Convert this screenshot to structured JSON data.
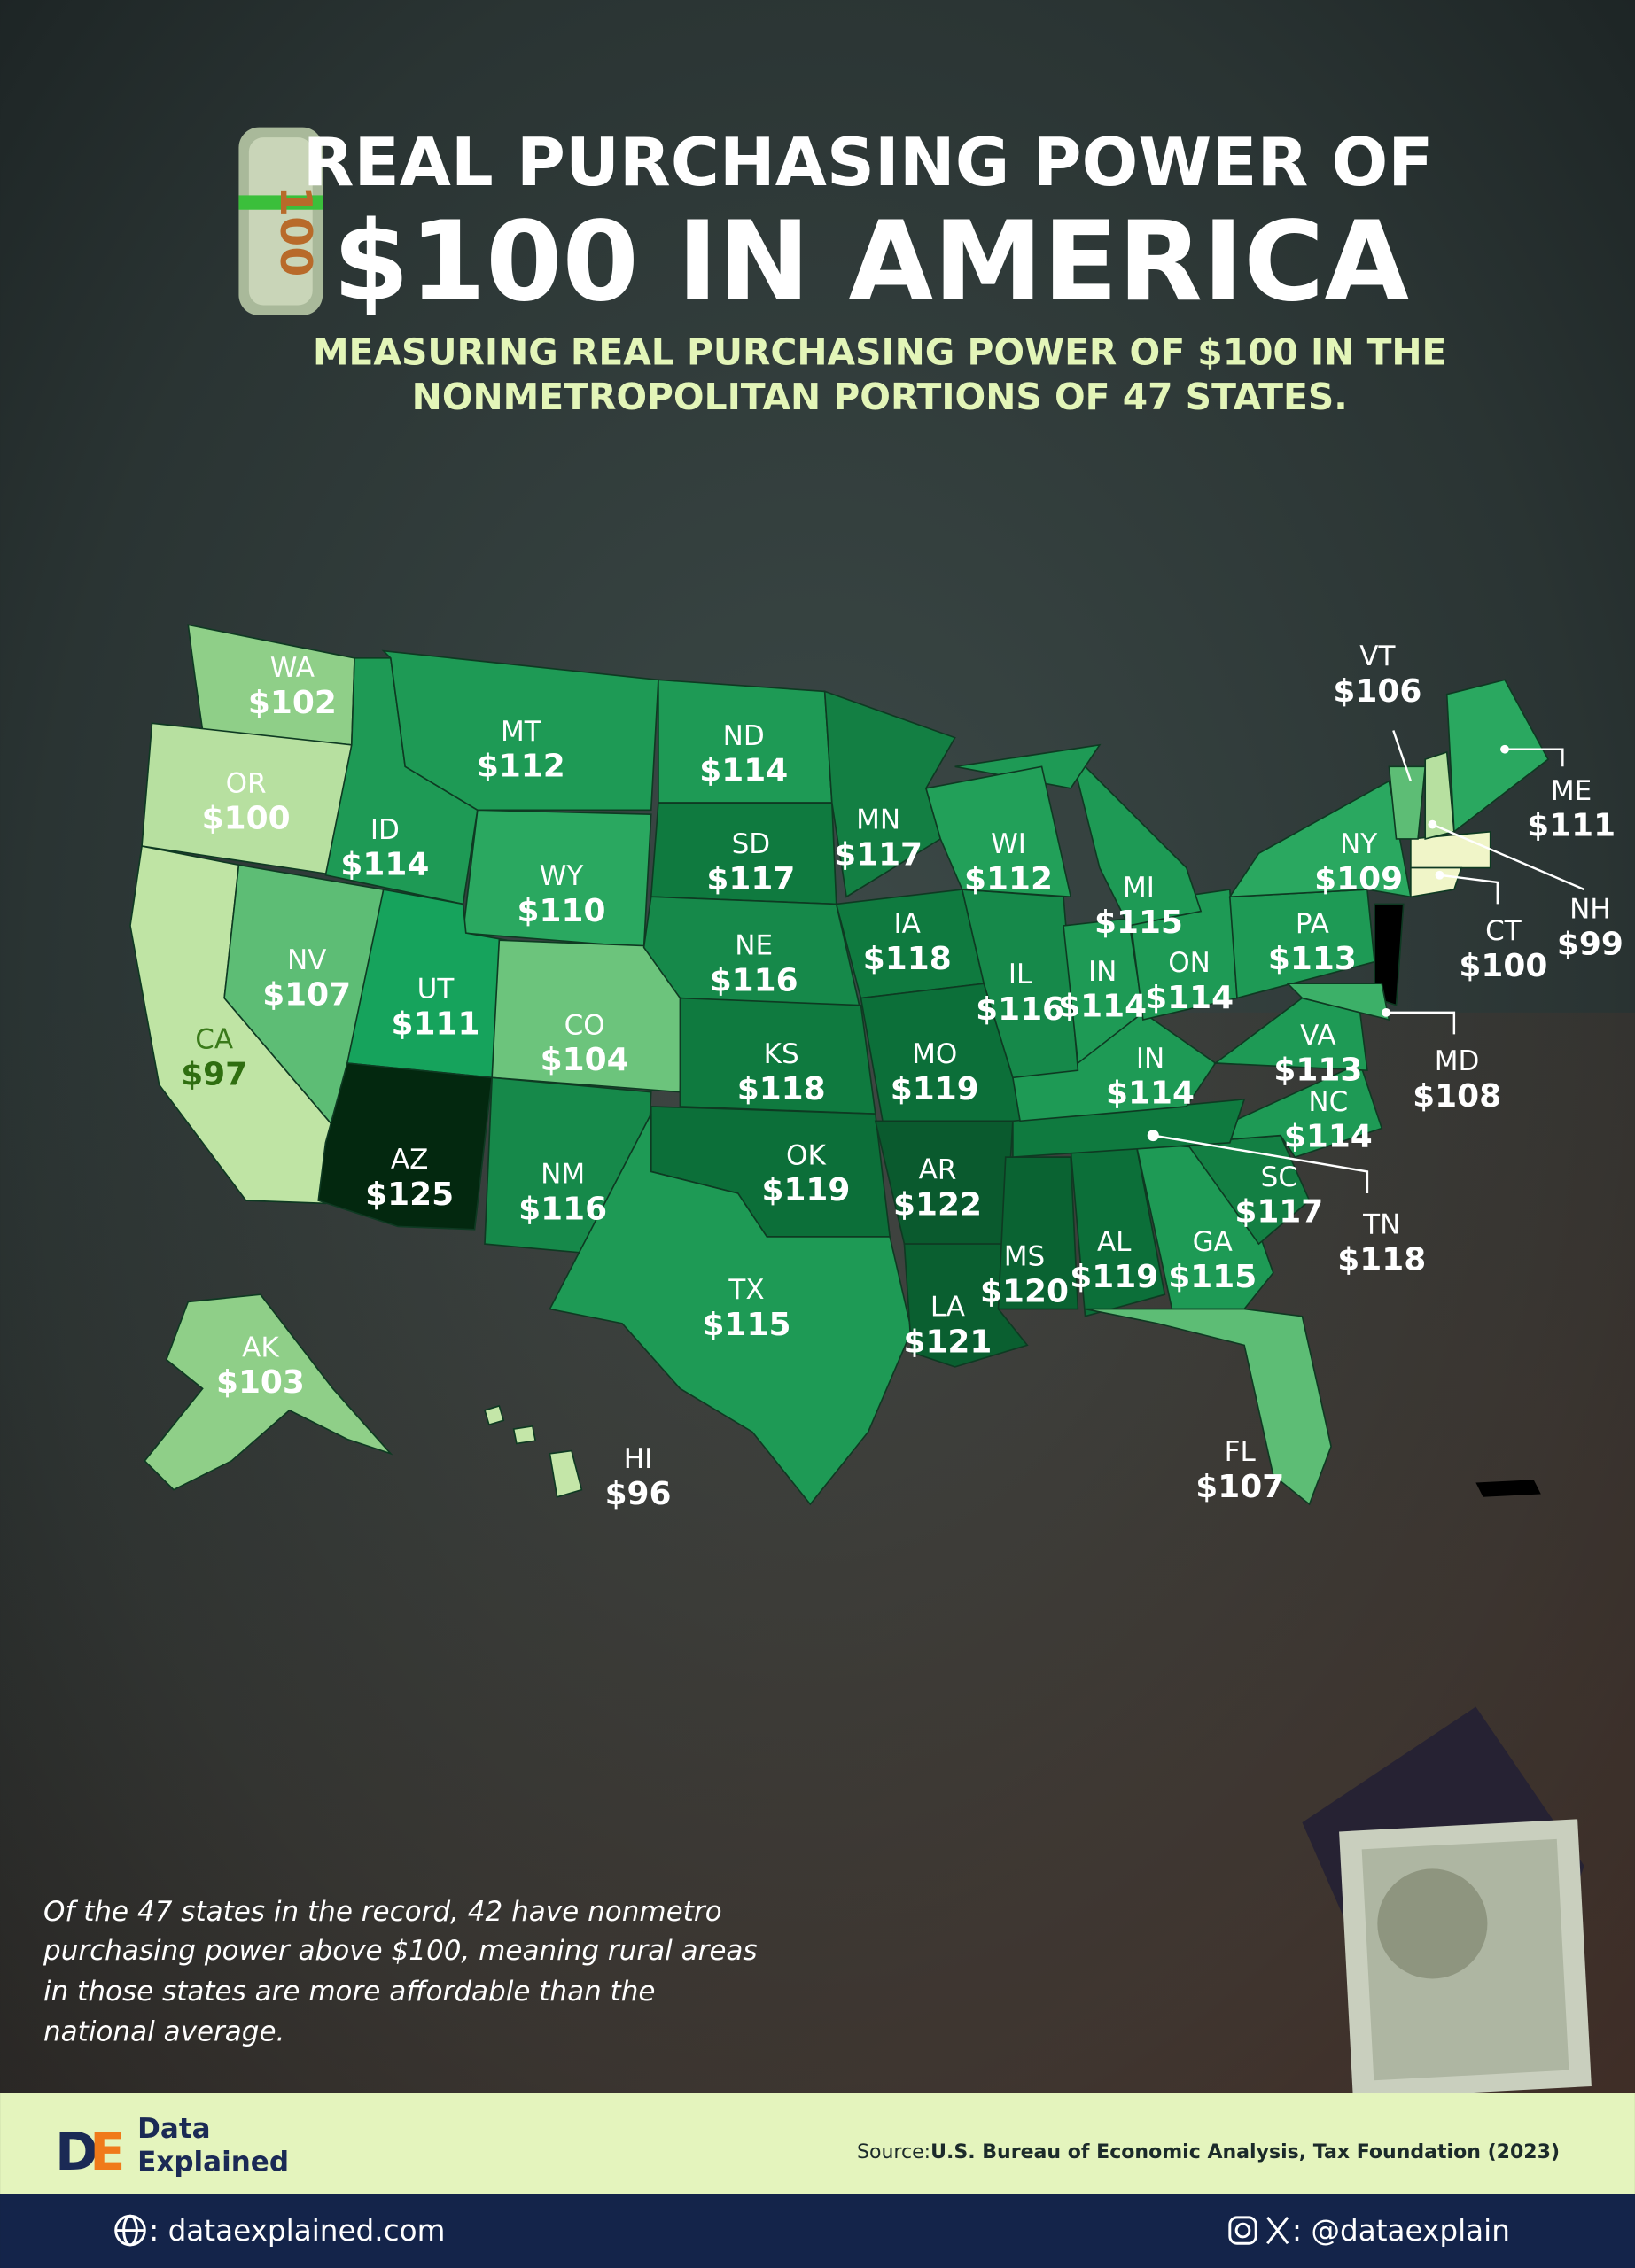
{
  "header": {
    "title_line1": "REAL PURCHASING POWER OF",
    "title_line2": "$100 IN AMERICA",
    "subtitle_line1": "MEASURING REAL PURCHASING POWER OF $100 IN THE",
    "subtitle_line2": "NONMETROPOLITAN PORTIONS OF 47 STATES."
  },
  "states": [
    {
      "code": "WA",
      "value": "$102",
      "color": "#8fcf88"
    },
    {
      "code": "OR",
      "value": "$100",
      "color": "#b7e0a0"
    },
    {
      "code": "CA",
      "value": "$97",
      "color": "#bfe4a4"
    },
    {
      "code": "NV",
      "value": "$107",
      "color": "#5dbd75"
    },
    {
      "code": "ID",
      "value": "$114",
      "color": "#1e9a55"
    },
    {
      "code": "MT",
      "value": "$112",
      "color": "#1e9a55"
    },
    {
      "code": "WY",
      "value": "$110",
      "color": "#2aa860"
    },
    {
      "code": "UT",
      "value": "$111",
      "color": "#16a35c"
    },
    {
      "code": "CO",
      "value": "$104",
      "color": "#6cc47c"
    },
    {
      "code": "AZ",
      "value": "$125",
      "color": "#03280f"
    },
    {
      "code": "NM",
      "value": "$116",
      "color": "#16894a"
    },
    {
      "code": "ND",
      "value": "$114",
      "color": "#1e9a55"
    },
    {
      "code": "SD",
      "value": "$117",
      "color": "#0f7a3f"
    },
    {
      "code": "NE",
      "value": "$116",
      "color": "#16894a"
    },
    {
      "code": "KS",
      "value": "$118",
      "color": "#0f7a3f"
    },
    {
      "code": "OK",
      "value": "$119",
      "color": "#0c6f39"
    },
    {
      "code": "TX",
      "value": "$115",
      "color": "#1e9a55"
    },
    {
      "code": "MN",
      "value": "$117",
      "color": "#137f43"
    },
    {
      "code": "IA",
      "value": "$118",
      "color": "#0f7a3f"
    },
    {
      "code": "MO",
      "value": "$119",
      "color": "#0c6f39"
    },
    {
      "code": "AR",
      "value": "$122",
      "color": "#0a5a2e"
    },
    {
      "code": "LA",
      "value": "$121",
      "color": "#0a5f30"
    },
    {
      "code": "MS",
      "value": "$120",
      "color": "#0a6332"
    },
    {
      "code": "AL",
      "value": "$119",
      "color": "#0c6f39"
    },
    {
      "code": "GA",
      "value": "$115",
      "color": "#1e9a55"
    },
    {
      "code": "FL",
      "value": "$107",
      "color": "#5dbd75"
    },
    {
      "code": "SC",
      "value": "$117",
      "color": "#137f43"
    },
    {
      "code": "NC",
      "value": "$114",
      "color": "#1e9a55"
    },
    {
      "code": "TN",
      "value": "$118",
      "color": "#0f7a3f"
    },
    {
      "code": "IN",
      "value": "$114",
      "color": "#1e9a55"
    },
    {
      "code": "IL",
      "value": "$116",
      "color": "#16894a"
    },
    {
      "code": "IN",
      "value": "$114",
      "color": "#1e9a55"
    },
    {
      "code": "ON",
      "value": "$114",
      "color": "#1e9a55"
    },
    {
      "code": "MI",
      "value": "$115",
      "color": "#1e9a55"
    },
    {
      "code": "WI",
      "value": "$112",
      "color": "#22a059"
    },
    {
      "code": "PA",
      "value": "$113",
      "color": "#1e9a55"
    },
    {
      "code": "NY",
      "value": "$109",
      "color": "#2aa860"
    },
    {
      "code": "VA",
      "value": "$113",
      "color": "#1e9a55"
    },
    {
      "code": "MD",
      "value": "$108",
      "color": "#3cb068"
    },
    {
      "code": "VT",
      "value": "$106",
      "color": "#5dbd75"
    },
    {
      "code": "NH",
      "value": "$99",
      "color": "#b7e0a0"
    },
    {
      "code": "ME",
      "value": "$111",
      "color": "#2aa860"
    },
    {
      "code": "CT",
      "value": "$100",
      "color": "#f0f5c8"
    },
    {
      "code": "AK",
      "value": "$103",
      "color": "#8fcf88"
    },
    {
      "code": "HI",
      "value": "$96",
      "color": "#c4e6a8"
    }
  ],
  "note": [
    "Of the 47 states in the record, 42 have nonmetro",
    "purchasing power above $100, meaning rural areas",
    "in those states are more affordable than the",
    "national average."
  ],
  "brand": {
    "line1": "Data",
    "line2": "Explained"
  },
  "source": {
    "label": "Source:",
    "text": "U.S. Bureau of Economic Analysis, Tax Foundation (2023)"
  },
  "footer": {
    "website": ": dataexplained.com",
    "social": ": @dataexplain"
  }
}
